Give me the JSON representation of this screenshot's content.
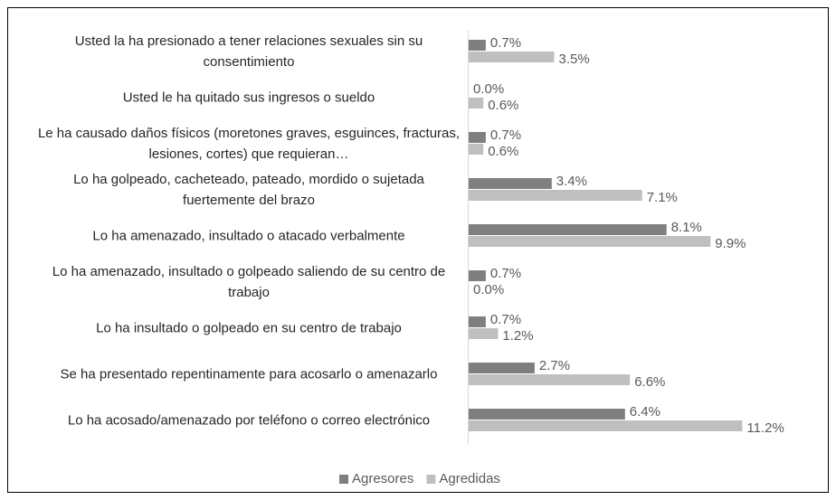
{
  "chart_data": {
    "type": "bar",
    "orientation": "horizontal",
    "categories": [
      "Usted la ha presionado a tener relaciones sexuales sin su consentimiento",
      "Usted le ha quitado sus ingresos o sueldo",
      "Le ha causado daños físicos (moretones graves, esguinces, fracturas, lesiones, cortes) que requieran…",
      "Lo ha golpeado, cacheteado, pateado, mordido o sujetada fuertemente del brazo",
      "Lo ha amenazado, insultado o atacado verbalmente",
      "Lo ha amenazado, insultado o golpeado saliendo de su centro de trabajo",
      "Lo ha insultado o golpeado en su centro de trabajo",
      "Se ha presentado repentinamente para acosarlo o amenazarlo",
      "Lo ha acosado/amenazado por teléfono o correo electrónico"
    ],
    "series": [
      {
        "name": "Agresores",
        "color": "#7f7f7f",
        "values": [
          0.7,
          0.0,
          0.7,
          3.4,
          8.1,
          0.7,
          0.7,
          2.7,
          6.4
        ],
        "value_labels": [
          "0.7%",
          "0.0%",
          "0.7%",
          "3.4%",
          "8.1%",
          "0.7%",
          "0.7%",
          "2.7%",
          "6.4%"
        ]
      },
      {
        "name": "Agredidas",
        "color": "#bfbfbf",
        "values": [
          3.5,
          0.6,
          0.6,
          7.1,
          9.9,
          0.0,
          1.2,
          6.6,
          11.2
        ],
        "value_labels": [
          "3.5%",
          "0.6%",
          "0.6%",
          "7.1%",
          "9.9%",
          "0.0%",
          "1.2%",
          "6.6%",
          "11.2%"
        ]
      }
    ],
    "legend": "bottom"
  }
}
